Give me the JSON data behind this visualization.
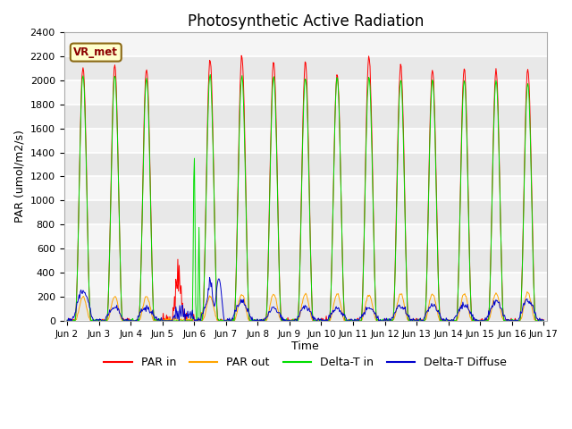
{
  "title": "Photosynthetic Active Radiation",
  "ylabel": "PAR (umol/m2/s)",
  "xlabel": "Time",
  "annotation": "VR_met",
  "ylim": [
    0,
    2400
  ],
  "background_color": "#f0f0f0",
  "plot_bg_color": "#f0f0f0",
  "colors": {
    "PAR in": "#ff0000",
    "PAR out": "#ffa500",
    "Delta-T in": "#00dd00",
    "Delta-T Diffuse": "#0000cc"
  },
  "legend_labels": [
    "PAR in",
    "PAR out",
    "Delta-T in",
    "Delta-T Diffuse"
  ],
  "tick_labels": [
    "Jun 2",
    "Jun 3",
    "Jun 4",
    "Jun 5",
    "Jun 6",
    "Jun 7",
    "Jun 8",
    "Jun 9",
    "Jun 10",
    "Jun 11",
    "Jun 12",
    "Jun 13",
    "Jun 14",
    "Jun 15",
    "Jun 16",
    "Jun 17"
  ],
  "title_fontsize": 12,
  "axis_fontsize": 9,
  "legend_fontsize": 9
}
